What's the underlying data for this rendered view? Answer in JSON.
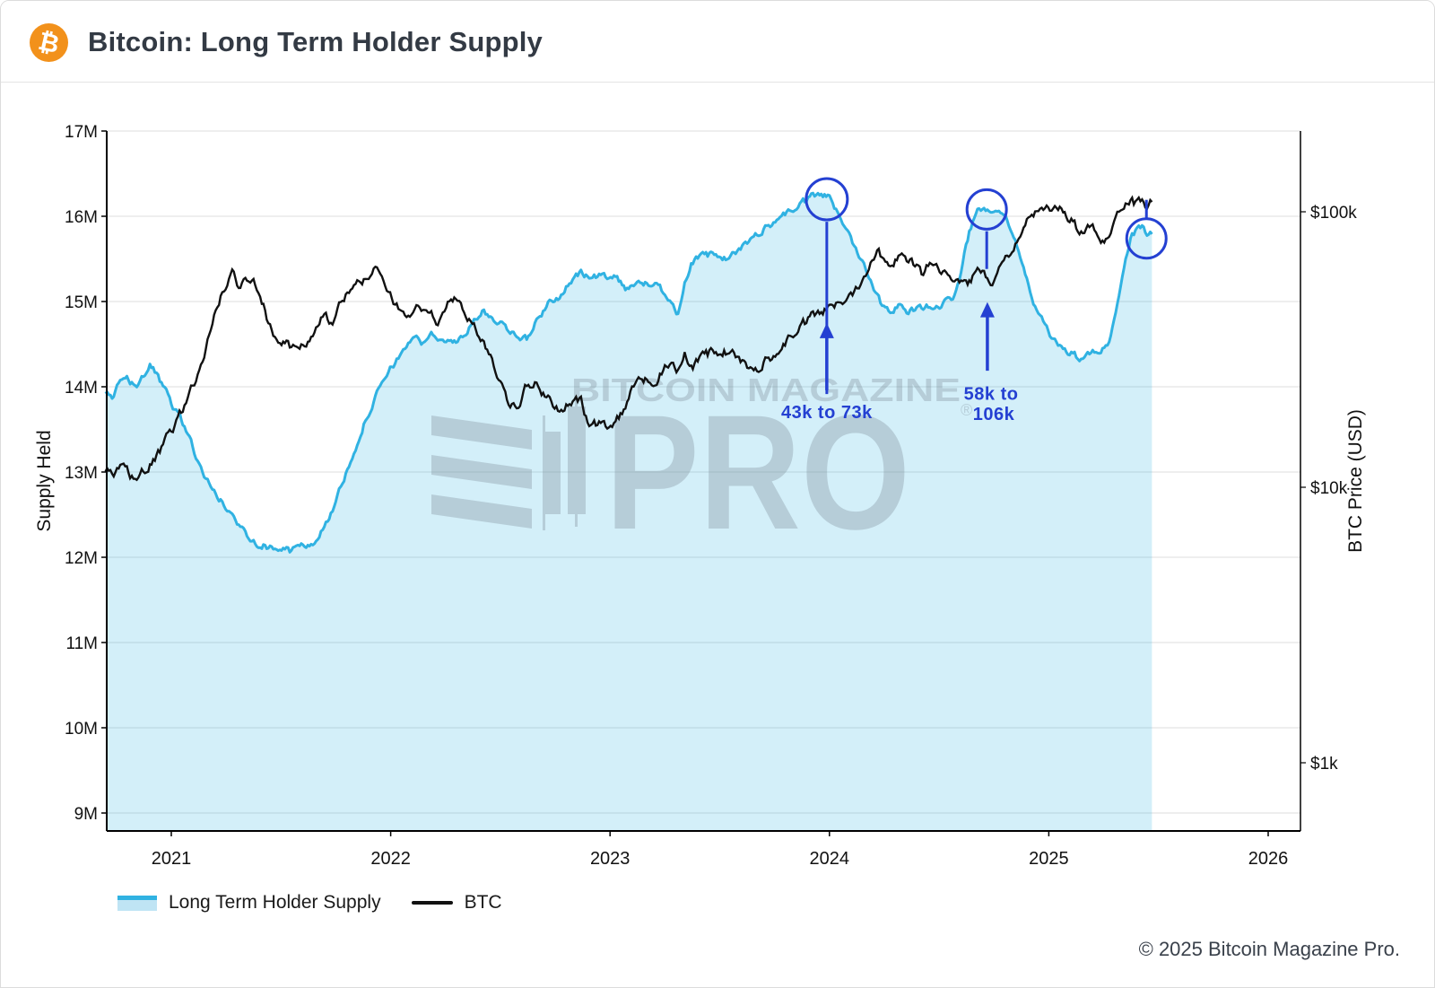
{
  "header": {
    "title": "Bitcoin: Long Term Holder Supply",
    "icon": "bitcoin-icon",
    "icon_glyph": "₿",
    "icon_color": "#f2911b"
  },
  "footer": {
    "copyright": "© 2025 Bitcoin Magazine Pro."
  },
  "watermark": {
    "line1": "BITCOIN MAGAZINE",
    "registered": "®",
    "line2": "PRO"
  },
  "legend": {
    "items": [
      {
        "label": "Long Term Holder Supply",
        "color": "#30b2e2"
      },
      {
        "label": "BTC",
        "color": "#111111"
      }
    ]
  },
  "annotations": {
    "color": "#2440d2",
    "items": [
      {
        "name": "dec-2023-peak",
        "circle": {
          "t": 2023.988,
          "supply": 16.2,
          "r": 23
        },
        "line": {
          "t": 2023.988,
          "from_price": 92000,
          "to_price": 21800
        },
        "arrow": {
          "t": 2023.988,
          "tail_price": 22500,
          "tip_price": 39500
        },
        "labels": [
          {
            "text": "43k to 73k",
            "t": 2023.988,
            "price": 18800
          }
        ]
      },
      {
        "name": "sep-2024-peak",
        "circle": {
          "t": 2024.717,
          "supply": 16.08,
          "r": 22
        },
        "line": {
          "t": 2024.717,
          "from_price": 85000,
          "to_price": 62000
        },
        "arrow": {
          "t": 2024.72,
          "tail_price": 26500,
          "tip_price": 47000
        },
        "labels": [
          {
            "text": "58k to",
            "t": 2024.737,
            "price": 21900
          },
          {
            "text": "106k",
            "t": 2024.749,
            "price": 18500
          }
        ]
      },
      {
        "name": "mid-2025-dip",
        "circle": {
          "t": 2025.445,
          "supply": 15.74,
          "r": 22
        },
        "line": {
          "t": 2025.445,
          "from_price": 94200,
          "to_price": 110500
        }
      }
    ]
  },
  "chart_data": {
    "type": "line",
    "title": "Bitcoin: Long Term Holder Supply",
    "grid": "horizontal",
    "legend_position": "bottom-left",
    "x_axis": {
      "range": [
        2020.706,
        2026.15
      ],
      "ticks": [
        2021,
        2022,
        2023,
        2024,
        2025,
        2026
      ]
    },
    "y_axis_left": {
      "label": "Supply Held",
      "scale": "linear",
      "range": [
        8.8,
        17
      ],
      "ticks": [
        {
          "value": 17,
          "label": "17M"
        },
        {
          "value": 16,
          "label": "16M"
        },
        {
          "value": 15,
          "label": "15M"
        },
        {
          "value": 14,
          "label": "14M"
        },
        {
          "value": 13,
          "label": "13M"
        },
        {
          "value": 12,
          "label": "12M"
        },
        {
          "value": 11,
          "label": "11M"
        },
        {
          "value": 10,
          "label": "10M"
        },
        {
          "value": 9,
          "label": "9M"
        }
      ]
    },
    "y_axis_right": {
      "label": "BTC Price (USD)",
      "scale": "log",
      "ticks": [
        {
          "value": 100000,
          "label": "$100k"
        },
        {
          "value": 10000,
          "label": "$10k"
        },
        {
          "value": 1000,
          "label": "$1k"
        }
      ]
    },
    "series": [
      {
        "name": "Long Term Holder Supply",
        "axis": "left",
        "unit": "M BTC",
        "color": "#30b2e2",
        "fill_color": "rgba(53,181,229,0.22)",
        "style": "area",
        "points": [
          [
            2020.7,
            13.92
          ],
          [
            2020.73,
            13.86
          ],
          [
            2020.76,
            14.02
          ],
          [
            2020.8,
            14.08
          ],
          [
            2020.84,
            14.02
          ],
          [
            2020.87,
            14.1
          ],
          [
            2020.9,
            14.26
          ],
          [
            2020.93,
            14.15
          ],
          [
            2020.96,
            14.0
          ],
          [
            2021.0,
            13.8
          ],
          [
            2021.04,
            13.66
          ],
          [
            2021.08,
            13.42
          ],
          [
            2021.12,
            13.12
          ],
          [
            2021.16,
            12.92
          ],
          [
            2021.2,
            12.75
          ],
          [
            2021.25,
            12.58
          ],
          [
            2021.3,
            12.4
          ],
          [
            2021.35,
            12.26
          ],
          [
            2021.4,
            12.16
          ],
          [
            2021.45,
            12.12
          ],
          [
            2021.5,
            12.1
          ],
          [
            2021.54,
            12.07
          ],
          [
            2021.58,
            12.12
          ],
          [
            2021.62,
            12.14
          ],
          [
            2021.66,
            12.2
          ],
          [
            2021.7,
            12.36
          ],
          [
            2021.74,
            12.6
          ],
          [
            2021.78,
            12.85
          ],
          [
            2021.82,
            13.15
          ],
          [
            2021.86,
            13.45
          ],
          [
            2021.9,
            13.7
          ],
          [
            2021.94,
            13.92
          ],
          [
            2021.98,
            14.12
          ],
          [
            2022.02,
            14.28
          ],
          [
            2022.06,
            14.45
          ],
          [
            2022.1,
            14.58
          ],
          [
            2022.14,
            14.52
          ],
          [
            2022.18,
            14.62
          ],
          [
            2022.24,
            14.55
          ],
          [
            2022.3,
            14.5
          ],
          [
            2022.36,
            14.72
          ],
          [
            2022.42,
            14.87
          ],
          [
            2022.47,
            14.8
          ],
          [
            2022.52,
            14.72
          ],
          [
            2022.57,
            14.62
          ],
          [
            2022.62,
            14.55
          ],
          [
            2022.67,
            14.8
          ],
          [
            2022.72,
            14.98
          ],
          [
            2022.77,
            15.07
          ],
          [
            2022.82,
            15.22
          ],
          [
            2022.87,
            15.34
          ],
          [
            2022.92,
            15.27
          ],
          [
            2022.97,
            15.3
          ],
          [
            2023.02,
            15.31
          ],
          [
            2023.07,
            15.17
          ],
          [
            2023.12,
            15.2
          ],
          [
            2023.17,
            15.22
          ],
          [
            2023.22,
            15.17
          ],
          [
            2023.27,
            15.05
          ],
          [
            2023.31,
            14.86
          ],
          [
            2023.34,
            15.2
          ],
          [
            2023.37,
            15.47
          ],
          [
            2023.42,
            15.52
          ],
          [
            2023.47,
            15.55
          ],
          [
            2023.52,
            15.5
          ],
          [
            2023.57,
            15.56
          ],
          [
            2023.62,
            15.68
          ],
          [
            2023.67,
            15.8
          ],
          [
            2023.72,
            15.88
          ],
          [
            2023.77,
            15.99
          ],
          [
            2023.82,
            16.06
          ],
          [
            2023.87,
            16.14
          ],
          [
            2023.92,
            16.22
          ],
          [
            2023.96,
            16.27
          ],
          [
            2024.0,
            16.21
          ],
          [
            2024.04,
            16.02
          ],
          [
            2024.08,
            15.86
          ],
          [
            2024.12,
            15.62
          ],
          [
            2024.16,
            15.45
          ],
          [
            2024.2,
            15.18
          ],
          [
            2024.24,
            14.96
          ],
          [
            2024.28,
            14.91
          ],
          [
            2024.32,
            14.96
          ],
          [
            2024.36,
            14.88
          ],
          [
            2024.4,
            14.9
          ],
          [
            2024.44,
            14.95
          ],
          [
            2024.48,
            14.92
          ],
          [
            2024.52,
            14.97
          ],
          [
            2024.56,
            15.05
          ],
          [
            2024.6,
            15.35
          ],
          [
            2024.64,
            15.85
          ],
          [
            2024.68,
            16.06
          ],
          [
            2024.72,
            16.1
          ],
          [
            2024.76,
            16.1
          ],
          [
            2024.8,
            16.02
          ],
          [
            2024.84,
            15.8
          ],
          [
            2024.88,
            15.45
          ],
          [
            2024.92,
            15.05
          ],
          [
            2024.96,
            14.8
          ],
          [
            2025.0,
            14.62
          ],
          [
            2025.05,
            14.5
          ],
          [
            2025.1,
            14.4
          ],
          [
            2025.15,
            14.31
          ],
          [
            2025.19,
            14.38
          ],
          [
            2025.23,
            14.42
          ],
          [
            2025.27,
            14.53
          ],
          [
            2025.31,
            14.9
          ],
          [
            2025.34,
            15.4
          ],
          [
            2025.37,
            15.72
          ],
          [
            2025.4,
            15.84
          ],
          [
            2025.43,
            15.88
          ],
          [
            2025.45,
            15.8
          ],
          [
            2025.47,
            15.79
          ]
        ]
      },
      {
        "name": "BTC",
        "axis": "right",
        "unit": "USD",
        "color": "#111111",
        "style": "line",
        "points": [
          [
            2020.7,
            11400
          ],
          [
            2020.74,
            11100
          ],
          [
            2020.78,
            11700
          ],
          [
            2020.83,
            10800
          ],
          [
            2020.87,
            11300
          ],
          [
            2020.92,
            12300
          ],
          [
            2020.96,
            13900
          ],
          [
            2021.0,
            16000
          ],
          [
            2021.05,
            19200
          ],
          [
            2021.09,
            22500
          ],
          [
            2021.13,
            26500
          ],
          [
            2021.17,
            35000
          ],
          [
            2021.21,
            46000
          ],
          [
            2021.25,
            54000
          ],
          [
            2021.28,
            60500
          ],
          [
            2021.31,
            52000
          ],
          [
            2021.34,
            57500
          ],
          [
            2021.37,
            58500
          ],
          [
            2021.4,
            53000
          ],
          [
            2021.43,
            43000
          ],
          [
            2021.46,
            36500
          ],
          [
            2021.5,
            33500
          ],
          [
            2021.54,
            32500
          ],
          [
            2021.58,
            31200
          ],
          [
            2021.62,
            33500
          ],
          [
            2021.66,
            38500
          ],
          [
            2021.7,
            42500
          ],
          [
            2021.73,
            39500
          ],
          [
            2021.77,
            45500
          ],
          [
            2021.81,
            51500
          ],
          [
            2021.85,
            59500
          ],
          [
            2021.88,
            56500
          ],
          [
            2021.92,
            63000
          ],
          [
            2021.96,
            56500
          ],
          [
            2022.0,
            48500
          ],
          [
            2022.04,
            44500
          ],
          [
            2022.08,
            42000
          ],
          [
            2022.12,
            44000
          ],
          [
            2022.16,
            45500
          ],
          [
            2022.21,
            39500
          ],
          [
            2022.26,
            46500
          ],
          [
            2022.3,
            47500
          ],
          [
            2022.34,
            44000
          ],
          [
            2022.38,
            38500
          ],
          [
            2022.42,
            33000
          ],
          [
            2022.46,
            29800
          ],
          [
            2022.5,
            24000
          ],
          [
            2022.54,
            20500
          ],
          [
            2022.58,
            19800
          ],
          [
            2022.62,
            23200
          ],
          [
            2022.66,
            23800
          ],
          [
            2022.7,
            21800
          ],
          [
            2022.74,
            20000
          ],
          [
            2022.78,
            19300
          ],
          [
            2022.83,
            20200
          ],
          [
            2022.87,
            20600
          ],
          [
            2022.9,
            17000
          ],
          [
            2022.94,
            16700
          ],
          [
            2022.98,
            16900
          ],
          [
            2023.02,
            17200
          ],
          [
            2023.06,
            19000
          ],
          [
            2023.1,
            23200
          ],
          [
            2023.14,
            24500
          ],
          [
            2023.18,
            24800
          ],
          [
            2023.21,
            22300
          ],
          [
            2023.25,
            28300
          ],
          [
            2023.28,
            28800
          ],
          [
            2023.31,
            26800
          ],
          [
            2023.34,
            30200
          ],
          [
            2023.38,
            27700
          ],
          [
            2023.42,
            29300
          ],
          [
            2023.46,
            30800
          ],
          [
            2023.5,
            30200
          ],
          [
            2023.54,
            31300
          ],
          [
            2023.58,
            29500
          ],
          [
            2023.62,
            27600
          ],
          [
            2023.66,
            26500
          ],
          [
            2023.7,
            28400
          ],
          [
            2023.74,
            30000
          ],
          [
            2023.78,
            31500
          ],
          [
            2023.82,
            35300
          ],
          [
            2023.86,
            37400
          ],
          [
            2023.9,
            40000
          ],
          [
            2023.95,
            43200
          ],
          [
            2023.99,
            44000
          ],
          [
            2024.03,
            45800
          ],
          [
            2024.07,
            48200
          ],
          [
            2024.11,
            51500
          ],
          [
            2024.15,
            57000
          ],
          [
            2024.19,
            67000
          ],
          [
            2024.22,
            72500
          ],
          [
            2024.26,
            65500
          ],
          [
            2024.3,
            67500
          ],
          [
            2024.34,
            70000
          ],
          [
            2024.38,
            64500
          ],
          [
            2024.42,
            59500
          ],
          [
            2024.46,
            66000
          ],
          [
            2024.5,
            62500
          ],
          [
            2024.54,
            56800
          ],
          [
            2024.58,
            59500
          ],
          [
            2024.62,
            54000
          ],
          [
            2024.66,
            58500
          ],
          [
            2024.7,
            61000
          ],
          [
            2024.74,
            56500
          ],
          [
            2024.78,
            65500
          ],
          [
            2024.82,
            71500
          ],
          [
            2024.86,
            80500
          ],
          [
            2024.9,
            92000
          ],
          [
            2024.94,
            100500
          ],
          [
            2024.97,
            97500
          ],
          [
            2025.01,
            103000
          ],
          [
            2025.05,
            105500
          ],
          [
            2025.09,
            96500
          ],
          [
            2025.13,
            86500
          ],
          [
            2025.16,
            82000
          ],
          [
            2025.19,
            88000
          ],
          [
            2025.22,
            83500
          ],
          [
            2025.25,
            78500
          ],
          [
            2025.29,
            89500
          ],
          [
            2025.33,
            103500
          ],
          [
            2025.36,
            110500
          ],
          [
            2025.39,
            107000
          ],
          [
            2025.42,
            109500
          ],
          [
            2025.445,
            106000
          ],
          [
            2025.47,
            108500
          ]
        ]
      }
    ]
  }
}
